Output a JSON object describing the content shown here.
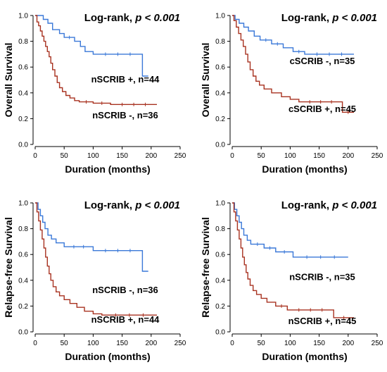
{
  "chart_data": [
    {
      "type": "line",
      "subtype": "kaplan-meier",
      "annotation_prefix": "Log-rank, ",
      "annotation_p": "p < 0.001",
      "xlabel": "Duration (months)",
      "ylabel": "Overall Survival",
      "xlim": [
        0,
        250
      ],
      "ylim": [
        0,
        1.0
      ],
      "xticks": [
        "0",
        "50",
        "100",
        "150",
        "200",
        "250"
      ],
      "yticks": [
        "0.0",
        "0.2",
        "0.4",
        "0.6",
        "0.8",
        "1.0"
      ],
      "grid": false,
      "series": [
        {
          "label": "nSCRIB -, n=36",
          "color": "#3a78d8",
          "steps": [
            [
              0,
              1.0
            ],
            [
              14,
              1.0
            ],
            [
              14,
              0.97
            ],
            [
              22,
              0.97
            ],
            [
              22,
              0.94
            ],
            [
              30,
              0.94
            ],
            [
              30,
              0.89
            ],
            [
              42,
              0.89
            ],
            [
              42,
              0.86
            ],
            [
              50,
              0.86
            ],
            [
              50,
              0.83
            ],
            [
              68,
              0.83
            ],
            [
              68,
              0.8
            ],
            [
              78,
              0.8
            ],
            [
              78,
              0.76
            ],
            [
              86,
              0.76
            ],
            [
              86,
              0.72
            ],
            [
              100,
              0.72
            ],
            [
              100,
              0.7
            ],
            [
              185,
              0.7
            ],
            [
              185,
              0.53
            ],
            [
              195,
              0.53
            ]
          ]
        },
        {
          "label": "nSCRIB +, n=44",
          "color": "#a83220",
          "steps": [
            [
              0,
              1.0
            ],
            [
              3,
              1.0
            ],
            [
              3,
              0.95
            ],
            [
              6,
              0.95
            ],
            [
              6,
              0.92
            ],
            [
              9,
              0.92
            ],
            [
              9,
              0.88
            ],
            [
              12,
              0.88
            ],
            [
              12,
              0.84
            ],
            [
              15,
              0.84
            ],
            [
              15,
              0.8
            ],
            [
              18,
              0.8
            ],
            [
              18,
              0.76
            ],
            [
              21,
              0.76
            ],
            [
              21,
              0.72
            ],
            [
              24,
              0.72
            ],
            [
              24,
              0.68
            ],
            [
              27,
              0.68
            ],
            [
              27,
              0.63
            ],
            [
              30,
              0.63
            ],
            [
              30,
              0.58
            ],
            [
              34,
              0.58
            ],
            [
              34,
              0.53
            ],
            [
              38,
              0.53
            ],
            [
              38,
              0.48
            ],
            [
              42,
              0.48
            ],
            [
              42,
              0.44
            ],
            [
              47,
              0.44
            ],
            [
              47,
              0.41
            ],
            [
              53,
              0.41
            ],
            [
              53,
              0.38
            ],
            [
              60,
              0.38
            ],
            [
              60,
              0.36
            ],
            [
              68,
              0.36
            ],
            [
              68,
              0.34
            ],
            [
              76,
              0.34
            ],
            [
              76,
              0.33
            ],
            [
              100,
              0.33
            ],
            [
              100,
              0.32
            ],
            [
              130,
              0.32
            ],
            [
              130,
              0.31
            ],
            [
              210,
              0.31
            ]
          ]
        }
      ]
    },
    {
      "type": "line",
      "subtype": "kaplan-meier",
      "annotation_prefix": "Log-rank, ",
      "annotation_p": "p < 0.001",
      "xlabel": "Duration (months)",
      "ylabel": "Overall Survival",
      "xlim": [
        0,
        250
      ],
      "ylim": [
        0,
        1.0
      ],
      "xticks": [
        "0",
        "50",
        "100",
        "150",
        "200",
        "250"
      ],
      "yticks": [
        "0.0",
        "0.2",
        "0.4",
        "0.6",
        "0.8",
        "1.0"
      ],
      "grid": false,
      "series": [
        {
          "label": "cSCRIB -, n=35",
          "color": "#3a78d8",
          "steps": [
            [
              0,
              1.0
            ],
            [
              5,
              1.0
            ],
            [
              5,
              0.97
            ],
            [
              12,
              0.97
            ],
            [
              12,
              0.94
            ],
            [
              20,
              0.94
            ],
            [
              20,
              0.91
            ],
            [
              28,
              0.91
            ],
            [
              28,
              0.88
            ],
            [
              38,
              0.88
            ],
            [
              38,
              0.84
            ],
            [
              48,
              0.84
            ],
            [
              48,
              0.81
            ],
            [
              68,
              0.81
            ],
            [
              68,
              0.78
            ],
            [
              88,
              0.78
            ],
            [
              88,
              0.75
            ],
            [
              105,
              0.75
            ],
            [
              105,
              0.72
            ],
            [
              125,
              0.72
            ],
            [
              125,
              0.7
            ],
            [
              210,
              0.7
            ]
          ]
        },
        {
          "label": "cSCRIB +, n=45",
          "color": "#a83220",
          "steps": [
            [
              0,
              1.0
            ],
            [
              3,
              1.0
            ],
            [
              3,
              0.96
            ],
            [
              7,
              0.96
            ],
            [
              7,
              0.91
            ],
            [
              11,
              0.91
            ],
            [
              11,
              0.86
            ],
            [
              15,
              0.86
            ],
            [
              15,
              0.81
            ],
            [
              19,
              0.81
            ],
            [
              19,
              0.76
            ],
            [
              23,
              0.76
            ],
            [
              23,
              0.7
            ],
            [
              27,
              0.7
            ],
            [
              27,
              0.64
            ],
            [
              31,
              0.64
            ],
            [
              31,
              0.58
            ],
            [
              36,
              0.58
            ],
            [
              36,
              0.53
            ],
            [
              41,
              0.53
            ],
            [
              41,
              0.49
            ],
            [
              47,
              0.49
            ],
            [
              47,
              0.46
            ],
            [
              55,
              0.46
            ],
            [
              55,
              0.43
            ],
            [
              68,
              0.43
            ],
            [
              68,
              0.4
            ],
            [
              85,
              0.4
            ],
            [
              85,
              0.37
            ],
            [
              100,
              0.37
            ],
            [
              100,
              0.35
            ],
            [
              115,
              0.35
            ],
            [
              115,
              0.33
            ],
            [
              190,
              0.33
            ],
            [
              190,
              0.25
            ],
            [
              210,
              0.25
            ]
          ]
        }
      ]
    },
    {
      "type": "line",
      "subtype": "kaplan-meier",
      "annotation_prefix": "Log-rank, ",
      "annotation_p": "p < 0.001",
      "xlabel": "Duration (months)",
      "ylabel": "Relapse-free Survival",
      "xlim": [
        0,
        250
      ],
      "ylim": [
        0,
        1.0
      ],
      "xticks": [
        "0",
        "50",
        "100",
        "150",
        "200",
        "250"
      ],
      "yticks": [
        "0.0",
        "0.2",
        "0.4",
        "0.6",
        "0.8",
        "1.0"
      ],
      "grid": false,
      "series": [
        {
          "label": "nSCRIB -, n=36",
          "color": "#3a78d8",
          "steps": [
            [
              0,
              1.0
            ],
            [
              5,
              1.0
            ],
            [
              5,
              0.95
            ],
            [
              9,
              0.95
            ],
            [
              9,
              0.9
            ],
            [
              13,
              0.9
            ],
            [
              13,
              0.85
            ],
            [
              17,
              0.85
            ],
            [
              17,
              0.8
            ],
            [
              22,
              0.8
            ],
            [
              22,
              0.75
            ],
            [
              28,
              0.75
            ],
            [
              28,
              0.72
            ],
            [
              36,
              0.72
            ],
            [
              36,
              0.69
            ],
            [
              50,
              0.69
            ],
            [
              50,
              0.66
            ],
            [
              100,
              0.66
            ],
            [
              100,
              0.63
            ],
            [
              185,
              0.63
            ],
            [
              185,
              0.47
            ],
            [
              195,
              0.47
            ]
          ]
        },
        {
          "label": "nSCRIB +, n=44",
          "color": "#a83220",
          "steps": [
            [
              0,
              1.0
            ],
            [
              3,
              1.0
            ],
            [
              3,
              0.93
            ],
            [
              6,
              0.93
            ],
            [
              6,
              0.86
            ],
            [
              9,
              0.86
            ],
            [
              9,
              0.79
            ],
            [
              12,
              0.79
            ],
            [
              12,
              0.72
            ],
            [
              15,
              0.72
            ],
            [
              15,
              0.65
            ],
            [
              18,
              0.65
            ],
            [
              18,
              0.58
            ],
            [
              21,
              0.58
            ],
            [
              21,
              0.51
            ],
            [
              24,
              0.51
            ],
            [
              24,
              0.45
            ],
            [
              27,
              0.45
            ],
            [
              27,
              0.4
            ],
            [
              31,
              0.4
            ],
            [
              31,
              0.35
            ],
            [
              36,
              0.35
            ],
            [
              36,
              0.31
            ],
            [
              42,
              0.31
            ],
            [
              42,
              0.28
            ],
            [
              50,
              0.28
            ],
            [
              50,
              0.25
            ],
            [
              60,
              0.25
            ],
            [
              60,
              0.22
            ],
            [
              72,
              0.22
            ],
            [
              72,
              0.19
            ],
            [
              85,
              0.19
            ],
            [
              85,
              0.16
            ],
            [
              100,
              0.16
            ],
            [
              100,
              0.14
            ],
            [
              115,
              0.14
            ],
            [
              115,
              0.13
            ],
            [
              210,
              0.13
            ]
          ]
        }
      ]
    },
    {
      "type": "line",
      "subtype": "kaplan-meier",
      "annotation_prefix": "Log-rank, ",
      "annotation_p": "p < 0.001",
      "xlabel": "Duration (months)",
      "ylabel": "Relapse-free Survival",
      "xlim": [
        0,
        250
      ],
      "ylim": [
        0,
        1.0
      ],
      "xticks": [
        "0",
        "50",
        "100",
        "150",
        "200",
        "250"
      ],
      "yticks": [
        "0.0",
        "0.2",
        "0.4",
        "0.6",
        "0.8",
        "1.0"
      ],
      "grid": false,
      "series": [
        {
          "label": "nSCRIB -, n=35",
          "color": "#3a78d8",
          "steps": [
            [
              0,
              1.0
            ],
            [
              4,
              1.0
            ],
            [
              4,
              0.95
            ],
            [
              8,
              0.95
            ],
            [
              8,
              0.9
            ],
            [
              12,
              0.9
            ],
            [
              12,
              0.85
            ],
            [
              16,
              0.85
            ],
            [
              16,
              0.8
            ],
            [
              20,
              0.8
            ],
            [
              20,
              0.75
            ],
            [
              26,
              0.75
            ],
            [
              26,
              0.71
            ],
            [
              32,
              0.71
            ],
            [
              32,
              0.68
            ],
            [
              55,
              0.68
            ],
            [
              55,
              0.65
            ],
            [
              75,
              0.65
            ],
            [
              75,
              0.62
            ],
            [
              105,
              0.62
            ],
            [
              105,
              0.58
            ],
            [
              200,
              0.58
            ]
          ]
        },
        {
          "label": "nSCRIB +, n=45",
          "color": "#a83220",
          "steps": [
            [
              0,
              1.0
            ],
            [
              3,
              1.0
            ],
            [
              3,
              0.93
            ],
            [
              6,
              0.93
            ],
            [
              6,
              0.86
            ],
            [
              9,
              0.86
            ],
            [
              9,
              0.79
            ],
            [
              12,
              0.79
            ],
            [
              12,
              0.72
            ],
            [
              15,
              0.72
            ],
            [
              15,
              0.65
            ],
            [
              18,
              0.65
            ],
            [
              18,
              0.58
            ],
            [
              21,
              0.58
            ],
            [
              21,
              0.52
            ],
            [
              24,
              0.52
            ],
            [
              24,
              0.46
            ],
            [
              27,
              0.46
            ],
            [
              27,
              0.41
            ],
            [
              31,
              0.41
            ],
            [
              31,
              0.36
            ],
            [
              36,
              0.36
            ],
            [
              36,
              0.32
            ],
            [
              42,
              0.32
            ],
            [
              42,
              0.29
            ],
            [
              50,
              0.29
            ],
            [
              50,
              0.26
            ],
            [
              60,
              0.26
            ],
            [
              60,
              0.23
            ],
            [
              75,
              0.23
            ],
            [
              75,
              0.2
            ],
            [
              95,
              0.2
            ],
            [
              95,
              0.17
            ],
            [
              175,
              0.17
            ],
            [
              175,
              0.11
            ],
            [
              210,
              0.11
            ]
          ]
        }
      ]
    }
  ]
}
